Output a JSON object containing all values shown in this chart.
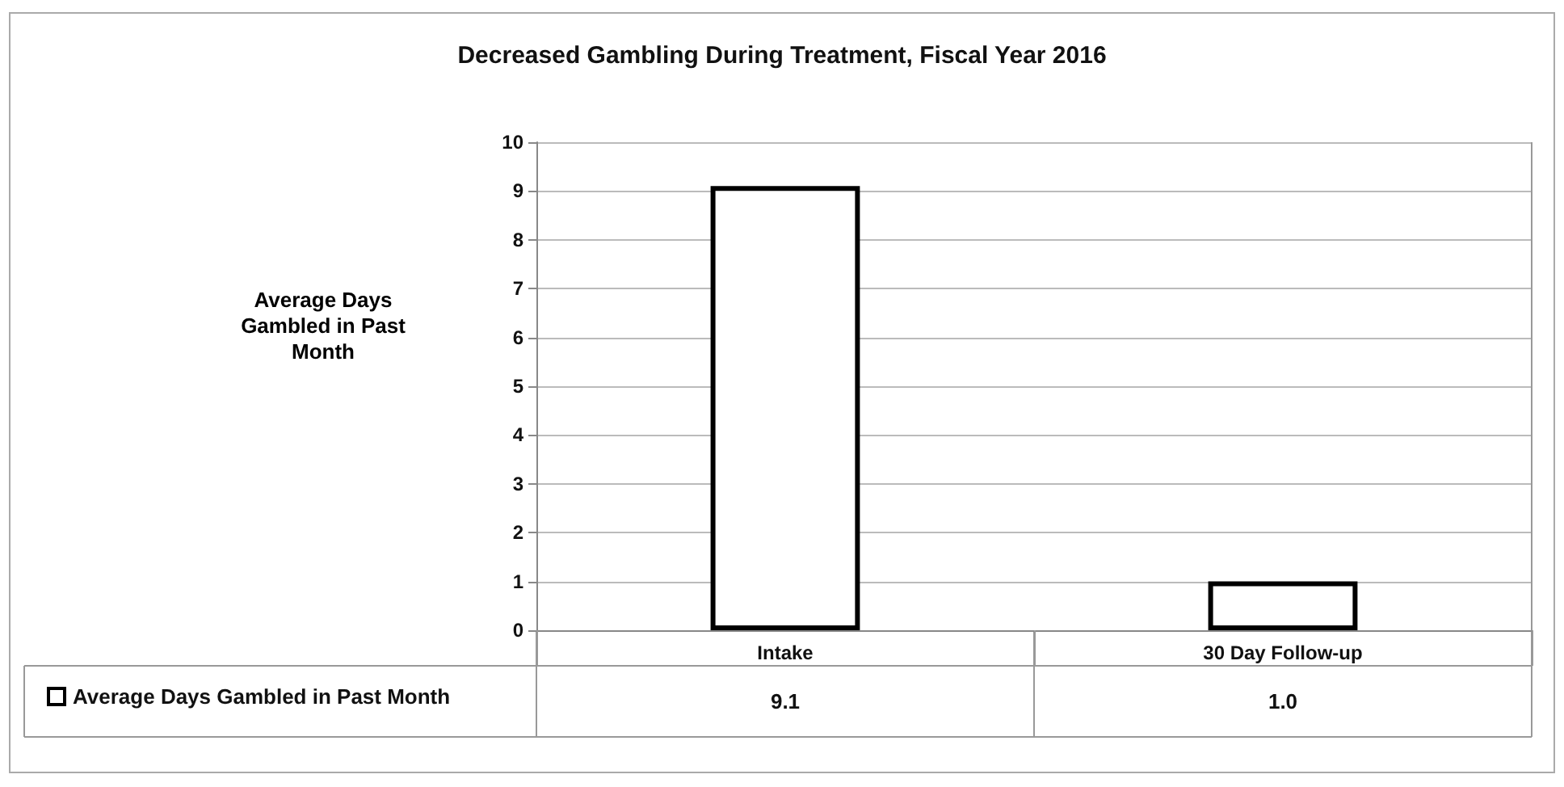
{
  "chart_data": {
    "type": "bar",
    "title": "Decreased Gambling During Treatment, Fiscal Year 2016",
    "ylabel": "Average Days Gambled in Past Month",
    "categories": [
      "Intake",
      "30 Day Follow-up"
    ],
    "series": [
      {
        "name": "Average Days Gambled in Past Month",
        "color": "#ffffff",
        "values": [
          9.1,
          1.0
        ],
        "value_labels": [
          "9.1",
          "1.0"
        ]
      }
    ],
    "ylim": [
      0,
      10
    ],
    "yticks": [
      0,
      1,
      2,
      3,
      4,
      5,
      6,
      7,
      8,
      9,
      10
    ],
    "grid": "y",
    "legend": "bottom left"
  }
}
